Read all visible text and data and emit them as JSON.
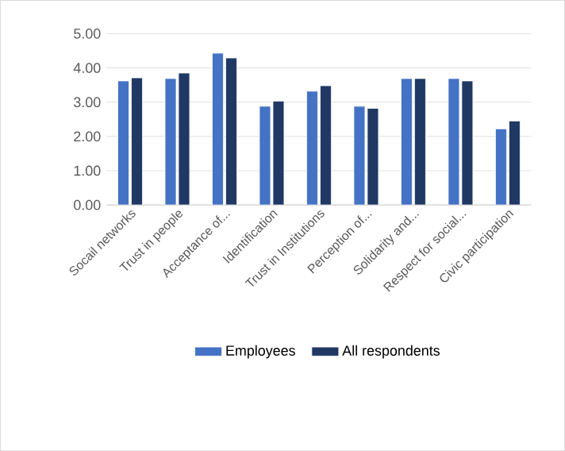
{
  "chart_data": {
    "type": "bar",
    "categories": [
      "Socail networks",
      "Trust in people",
      "Acceptance of...",
      "Identification",
      "Trust in Institutions",
      "Perception of...",
      "Solidarity and...",
      "Respect for social...",
      "Civic participation"
    ],
    "series": [
      {
        "name": "Employees",
        "color": "#4472c4",
        "values": [
          3.62,
          3.69,
          4.43,
          2.88,
          3.32,
          2.88,
          3.69,
          3.69,
          2.22
        ]
      },
      {
        "name": "All respondents",
        "color": "#203864",
        "values": [
          3.71,
          3.85,
          4.29,
          3.03,
          3.48,
          2.82,
          3.69,
          3.62,
          2.45
        ]
      }
    ],
    "ylim": [
      0,
      5
    ],
    "yticks": [
      {
        "value": 0,
        "label": "0.00"
      },
      {
        "value": 1,
        "label": "1.00"
      },
      {
        "value": 2,
        "label": "2.00"
      },
      {
        "value": 3,
        "label": "3.00"
      },
      {
        "value": 4,
        "label": "4.00"
      },
      {
        "value": 5,
        "label": "5.00"
      }
    ],
    "grid": "y",
    "legend": "bottom"
  }
}
